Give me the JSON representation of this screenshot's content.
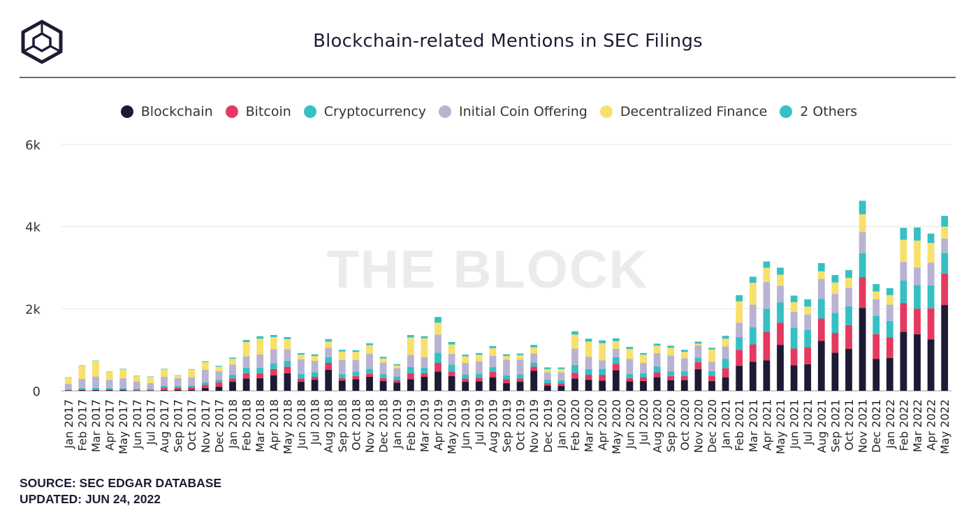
{
  "header": {
    "title": "Blockchain-related Mentions in SEC Filings"
  },
  "watermark": "THE BLOCK",
  "footer": {
    "source": "SOURCE: SEC EDGAR DATABASE",
    "updated": "UPDATED: JUN 24, 2022"
  },
  "legend": [
    {
      "label": "Blockchain",
      "color": "#1d1b34"
    },
    {
      "label": "Bitcoin",
      "color": "#e6395f"
    },
    {
      "label": "Cryptocurrency",
      "color": "#36c0c3"
    },
    {
      "label": "Initial Coin Offering",
      "color": "#b9b3d3"
    },
    {
      "label": "Decentralized Finance",
      "color": "#f7e06d"
    },
    {
      "label": "2 Others",
      "color": "#36c0c3"
    }
  ],
  "chart_data": {
    "type": "bar",
    "stacked": true,
    "title": "Blockchain-related Mentions in SEC Filings",
    "ylim": [
      0,
      6000
    ],
    "yticks": [
      0,
      2000,
      4000,
      6000
    ],
    "ytick_labels": [
      "0",
      "2k",
      "4k",
      "6k"
    ],
    "grid": true,
    "legend_position": "top",
    "categories": [
      "Jan 2017",
      "Feb 2017",
      "Mar 2017",
      "Apr 2017",
      "May 2017",
      "Jun 2017",
      "Jul 2017",
      "Aug 2017",
      "Sep 2017",
      "Oct 2017",
      "Nov 2017",
      "Dec 2017",
      "Jan 2018",
      "Feb 2018",
      "Mar 2018",
      "Apr 2018",
      "May 2018",
      "Jun 2018",
      "Jul 2018",
      "Aug 2018",
      "Sep 2018",
      "Oct 2018",
      "Nov 2018",
      "Dec 2018",
      "Jan 2019",
      "Feb 2019",
      "Mar 2019",
      "Apr 2019",
      "May 2019",
      "Jun 2019",
      "Jul 2019",
      "Aug 2019",
      "Sep 2019",
      "Oct 2019",
      "Nov 2019",
      "Dec 2019",
      "Jan 2020",
      "Feb 2020",
      "Mar 2020",
      "Apr 2020",
      "May 2020",
      "Jun 2020",
      "Jul 2020",
      "Aug 2020",
      "Sep 2020",
      "Oct 2020",
      "Nov 2020",
      "Dec 2020",
      "Jan 2021",
      "Feb 2021",
      "Mar 2021",
      "Apr 2021",
      "May 2021",
      "Jun 2021",
      "Jul 2021",
      "Aug 2021",
      "Sep 2021",
      "Oct 2021",
      "Nov 2021",
      "Dec 2021",
      "Jan 2022",
      "Feb 2022",
      "Mar 2022",
      "Apr 2022",
      "May 2022"
    ],
    "series": [
      {
        "name": "Blockchain",
        "color": "#1d1b34",
        "values": [
          10,
          20,
          20,
          20,
          20,
          10,
          10,
          20,
          30,
          30,
          70,
          100,
          220,
          300,
          310,
          380,
          430,
          220,
          270,
          510,
          250,
          280,
          340,
          240,
          200,
          280,
          340,
          470,
          360,
          220,
          230,
          330,
          190,
          220,
          490,
          130,
          120,
          300,
          270,
          250,
          500,
          230,
          240,
          330,
          260,
          260,
          530,
          240,
          330,
          610,
          710,
          740,
          1120,
          620,
          650,
          1220,
          930,
          1020,
          2020,
          780,
          800,
          1440,
          1380,
          1250,
          2090
        ]
      },
      {
        "name": "Bitcoin",
        "color": "#e6395f",
        "values": [
          10,
          20,
          20,
          20,
          20,
          10,
          10,
          60,
          50,
          60,
          80,
          110,
          80,
          130,
          120,
          150,
          160,
          80,
          70,
          170,
          60,
          80,
          80,
          70,
          60,
          150,
          90,
          210,
          110,
          80,
          90,
          130,
          90,
          80,
          100,
          60,
          60,
          140,
          120,
          140,
          160,
          80,
          90,
          120,
          100,
          100,
          170,
          130,
          220,
          390,
          420,
          700,
          540,
          410,
          410,
          540,
          480,
          580,
          750,
          600,
          500,
          700,
          620,
          760,
          770
        ]
      },
      {
        "name": "Cryptocurrency",
        "color": "#36c0c3",
        "values": [
          20,
          30,
          30,
          30,
          30,
          30,
          30,
          40,
          30,
          40,
          60,
          60,
          90,
          130,
          130,
          140,
          140,
          110,
          110,
          140,
          100,
          110,
          120,
          100,
          90,
          150,
          130,
          250,
          170,
          100,
          100,
          120,
          100,
          100,
          100,
          80,
          80,
          190,
          140,
          150,
          160,
          100,
          100,
          150,
          120,
          120,
          110,
          110,
          230,
          310,
          420,
          560,
          490,
          510,
          420,
          480,
          490,
          460,
          580,
          450,
          400,
          550,
          580,
          560,
          500
        ]
      },
      {
        "name": "Initial Coin Offering",
        "color": "#b9b3d3",
        "values": [
          130,
          220,
          280,
          200,
          240,
          180,
          140,
          220,
          200,
          200,
          300,
          210,
          250,
          280,
          330,
          340,
          280,
          360,
          280,
          230,
          340,
          280,
          360,
          280,
          200,
          300,
          260,
          440,
          260,
          280,
          300,
          270,
          380,
          360,
          220,
          180,
          190,
          400,
          300,
          200,
          200,
          370,
          250,
          320,
          380,
          310,
          300,
          230,
          300,
          350,
          550,
          650,
          410,
          380,
          380,
          480,
          460,
          450,
          520,
          400,
          400,
          450,
          420,
          550,
          350
        ]
      },
      {
        "name": "Decentralized Finance",
        "color": "#f7e06d",
        "values": [
          150,
          320,
          380,
          190,
          220,
          130,
          150,
          190,
          60,
          190,
          190,
          110,
          140,
          350,
          380,
          300,
          250,
          110,
          120,
          150,
          210,
          200,
          210,
          100,
          70,
          420,
          460,
          290,
          230,
          160,
          160,
          190,
          90,
          110,
          150,
          80,
          80,
          340,
          370,
          420,
          190,
          240,
          200,
          180,
          190,
          160,
          40,
          300,
          190,
          520,
          530,
          350,
          270,
          240,
          190,
          190,
          280,
          240,
          430,
          190,
          230,
          540,
          660,
          480,
          290
        ]
      },
      {
        "name": "2 Others",
        "color": "#36c0c3",
        "values": [
          10,
          10,
          10,
          10,
          10,
          10,
          10,
          10,
          10,
          10,
          20,
          20,
          30,
          50,
          60,
          50,
          50,
          40,
          40,
          60,
          40,
          40,
          50,
          40,
          30,
          60,
          50,
          140,
          60,
          40,
          40,
          50,
          40,
          40,
          60,
          40,
          40,
          80,
          70,
          70,
          70,
          50,
          40,
          50,
          50,
          50,
          50,
          40,
          70,
          150,
          150,
          150,
          170,
          160,
          180,
          200,
          180,
          190,
          330,
          180,
          170,
          290,
          320,
          230,
          260
        ]
      }
    ]
  }
}
